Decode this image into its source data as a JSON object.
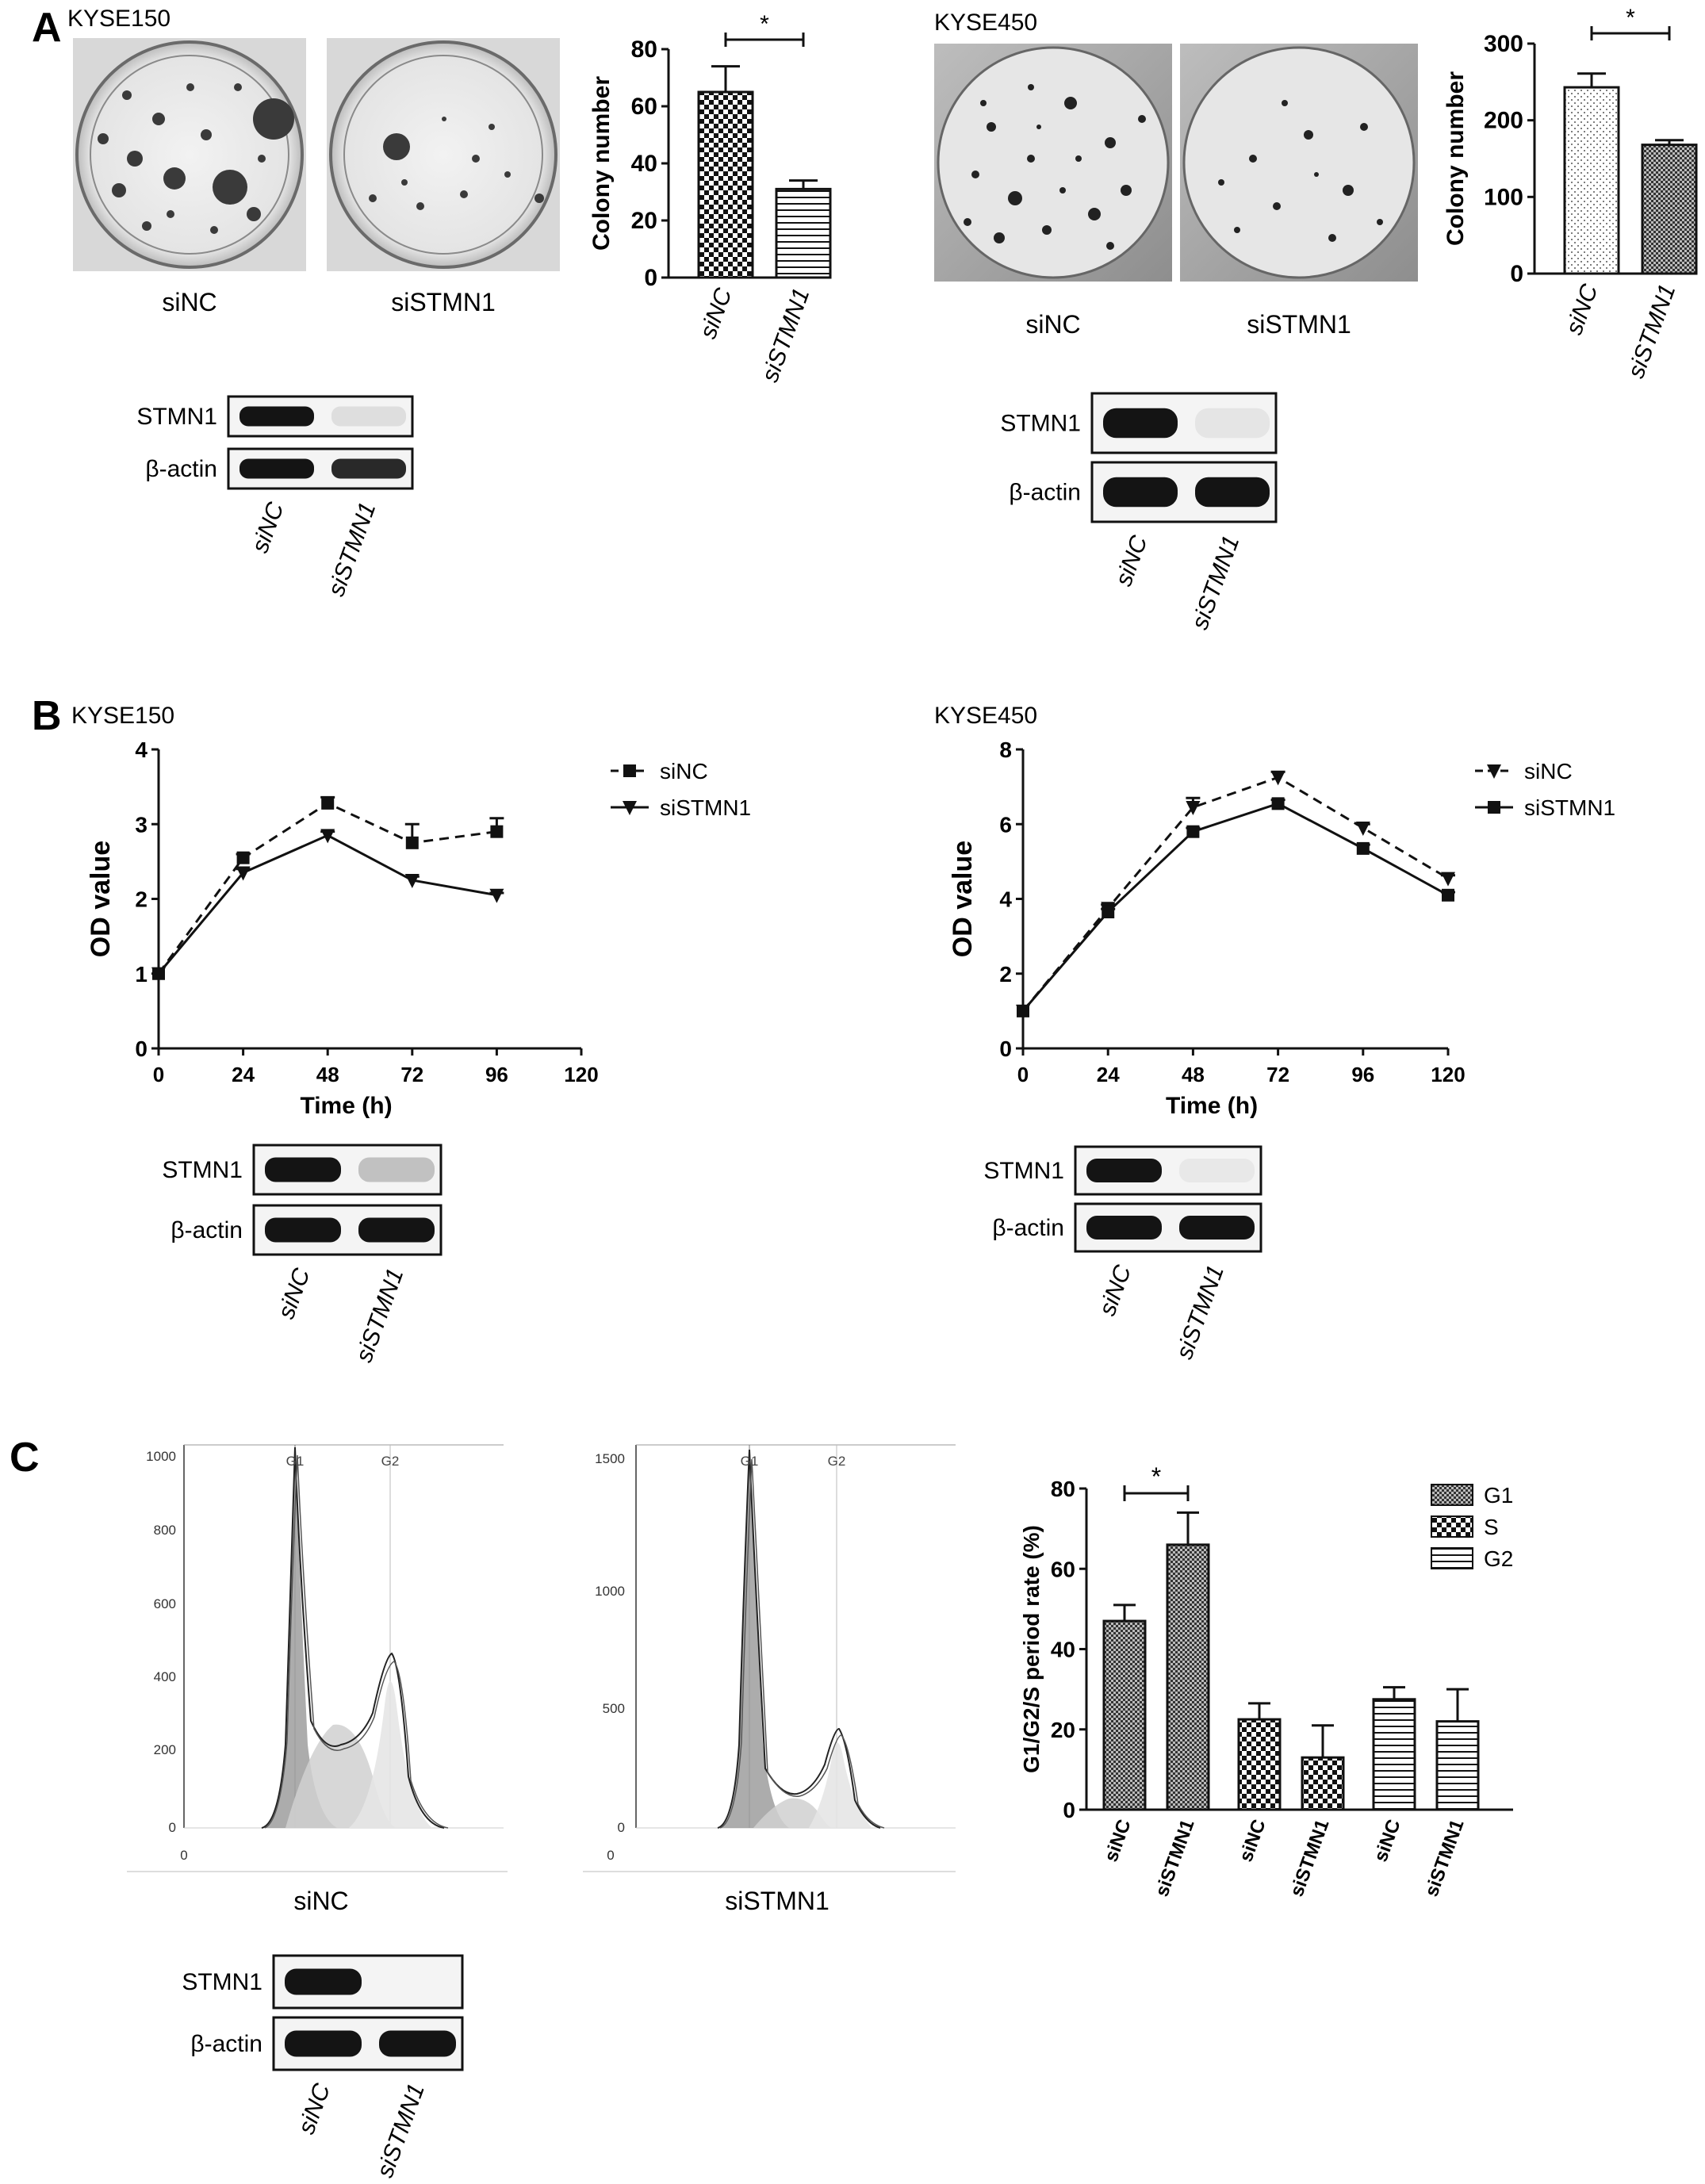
{
  "panels": {
    "A": {
      "letter": "A",
      "left": {
        "cell_line": "KYSE150",
        "dish_labels": [
          "siNC",
          "siSTMN1"
        ],
        "blot": {
          "rows": [
            "STMN1",
            "β-actin"
          ],
          "lanes": [
            "siNC",
            "siSTMN1"
          ],
          "band_intensity": {
            "STMN1": [
              1.0,
              0.2
            ],
            "β-actin": [
              1.0,
              0.95
            ]
          }
        }
      },
      "right": {
        "cell_line": "KYSE450",
        "dish_labels": [
          "siNC",
          "siSTMN1"
        ],
        "blot": {
          "rows": [
            "STMN1",
            "β-actin"
          ],
          "lanes": [
            "siNC",
            "siSTMN1"
          ],
          "band_intensity": {
            "STMN1": [
              1.0,
              0.1
            ],
            "β-actin": [
              1.0,
              1.0
            ]
          }
        }
      }
    },
    "B": {
      "letter": "B",
      "left": {
        "cell_line": "KYSE150",
        "blot": {
          "rows": [
            "STMN1",
            "β-actin"
          ],
          "lanes": [
            "siNC",
            "siSTMN1"
          ],
          "band_intensity": {
            "STMN1": [
              1.0,
              0.45
            ],
            "β-actin": [
              1.0,
              1.0
            ]
          }
        }
      },
      "right": {
        "cell_line": "KYSE450",
        "blot": {
          "rows": [
            "STMN1",
            "β-actin"
          ],
          "lanes": [
            "siNC",
            "siSTMN1"
          ],
          "band_intensity": {
            "STMN1": [
              1.0,
              0.05
            ],
            "β-actin": [
              1.0,
              1.0
            ]
          }
        }
      }
    },
    "C": {
      "letter": "C",
      "flow_labels": [
        "siNC",
        "siSTMN1"
      ],
      "flow_left": {
        "yticks": [
          "1000",
          "800",
          "600",
          "400",
          "200",
          "0"
        ],
        "x0": "0",
        "markers": [
          "G1",
          "G2"
        ]
      },
      "flow_right": {
        "yticks": [
          "1500",
          "1000",
          "500",
          "0"
        ],
        "x0": "0",
        "markers": [
          "G1",
          "G2"
        ]
      },
      "blot": {
        "rows": [
          "STMN1",
          "β-actin"
        ],
        "lanes": [
          "siNC",
          "siSTMN1"
        ],
        "band_intensity": {
          "STMN1": [
            1.0,
            0.0
          ],
          "β-actin": [
            1.0,
            1.0
          ]
        }
      }
    }
  },
  "chart_data": [
    {
      "id": "colony-kyse150",
      "type": "bar",
      "categories": [
        "siNC",
        "siSTMN1"
      ],
      "values": [
        65,
        31
      ],
      "errors": [
        9,
        3
      ],
      "patterns": [
        "checker",
        "hlines"
      ],
      "ylabel": "Colony number",
      "ylim": [
        0,
        80
      ],
      "yticks": [
        0,
        20,
        40,
        60,
        80
      ],
      "significance": {
        "between": [
          0,
          1
        ],
        "label": "*"
      }
    },
    {
      "id": "colony-kyse450",
      "type": "bar",
      "categories": [
        "siNC",
        "siSTMN1"
      ],
      "values": [
        243,
        168
      ],
      "errors": [
        18,
        6
      ],
      "patterns": [
        "dots",
        "dense-checker"
      ],
      "ylabel": "Colony number",
      "ylim": [
        0,
        300
      ],
      "yticks": [
        0,
        100,
        200,
        300
      ],
      "significance": {
        "between": [
          0,
          1
        ],
        "label": "*"
      }
    },
    {
      "id": "od-kyse150",
      "type": "line",
      "x": [
        0,
        24,
        48,
        72,
        96
      ],
      "series": [
        {
          "name": "siNC",
          "values": [
            1.0,
            2.55,
            3.28,
            2.75,
            2.9
          ],
          "errors": [
            0,
            0.05,
            0.08,
            0.25,
            0.18
          ],
          "marker": "square",
          "dashed": true
        },
        {
          "name": "siSTMN1",
          "values": [
            1.0,
            2.35,
            2.85,
            2.25,
            2.05
          ],
          "errors": [
            0,
            0.05,
            0.05,
            0.05,
            0.03
          ],
          "marker": "triangle-down",
          "dashed": false
        }
      ],
      "xlabel": "Time (h)",
      "ylabel": "OD value",
      "xlim": [
        0,
        120
      ],
      "ylim": [
        0,
        4
      ],
      "xticks": [
        0,
        24,
        48,
        72,
        96,
        120
      ],
      "yticks": [
        0,
        1,
        2,
        3,
        4
      ],
      "legend": "top-right"
    },
    {
      "id": "od-kyse450",
      "type": "line",
      "x": [
        0,
        24,
        48,
        72,
        96,
        120
      ],
      "series": [
        {
          "name": "siNC",
          "values": [
            1.0,
            3.75,
            6.45,
            7.25,
            5.9,
            4.55
          ],
          "errors": [
            0,
            0.1,
            0.25,
            0.15,
            0.1,
            0.08
          ],
          "marker": "triangle-down",
          "dashed": true
        },
        {
          "name": "siSTMN1",
          "values": [
            1.0,
            3.65,
            5.8,
            6.55,
            5.35,
            4.1
          ],
          "errors": [
            0,
            0.08,
            0.1,
            0.1,
            0.1,
            0.08
          ],
          "marker": "square",
          "dashed": false
        }
      ],
      "xlabel": "Time (h)",
      "ylabel": "OD value",
      "xlim": [
        0,
        120
      ],
      "ylim": [
        0,
        8
      ],
      "xticks": [
        0,
        24,
        48,
        72,
        96,
        120
      ],
      "yticks": [
        0,
        2,
        4,
        6,
        8
      ],
      "legend": "top-right"
    },
    {
      "id": "cell-cycle",
      "type": "bar",
      "groups": [
        "G1",
        "S",
        "G2"
      ],
      "categories": [
        "siNC",
        "siSTMN1"
      ],
      "series": [
        {
          "name": "G1",
          "values": [
            47,
            66
          ],
          "errors": [
            4,
            8
          ],
          "pattern": "dense-checker"
        },
        {
          "name": "S",
          "values": [
            22.5,
            13
          ],
          "errors": [
            4,
            8
          ],
          "pattern": "checker"
        },
        {
          "name": "G2",
          "values": [
            27.5,
            22
          ],
          "errors": [
            3,
            8
          ],
          "pattern": "hlines"
        }
      ],
      "ylabel": "G1/G2/S period rate (%)",
      "ylim": [
        0,
        80
      ],
      "yticks": [
        0,
        20,
        40,
        60,
        80
      ],
      "legend": "top-right",
      "significance": {
        "group": 0,
        "label": "*"
      }
    }
  ]
}
